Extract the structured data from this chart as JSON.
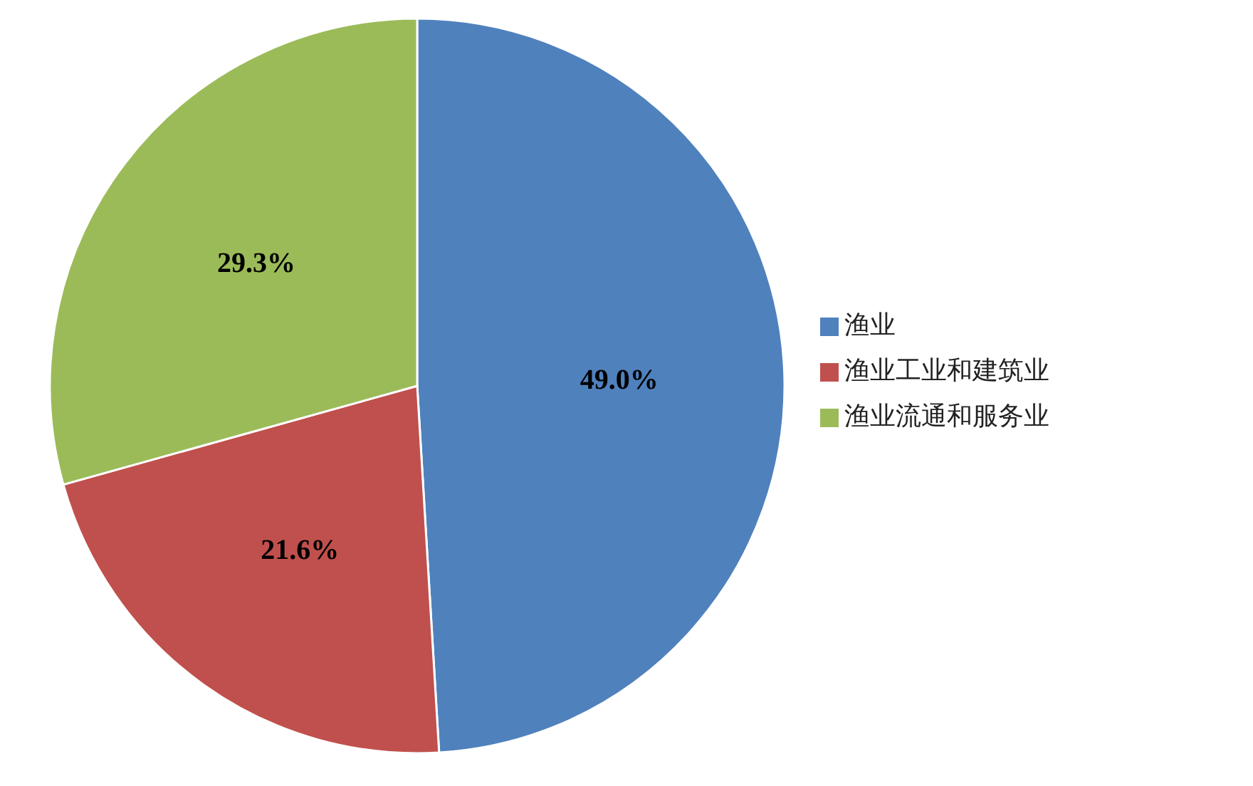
{
  "chart_data": {
    "type": "pie",
    "categories": [
      "渔业",
      "渔业工业和建筑业",
      "渔业流通和服务业"
    ],
    "values": [
      49.0,
      21.6,
      29.3
    ],
    "value_labels": [
      "49.0%",
      "21.6%",
      "29.3%"
    ],
    "colors": [
      "#4f81bd",
      "#c0504d",
      "#9bbb59"
    ],
    "legend": "right"
  }
}
